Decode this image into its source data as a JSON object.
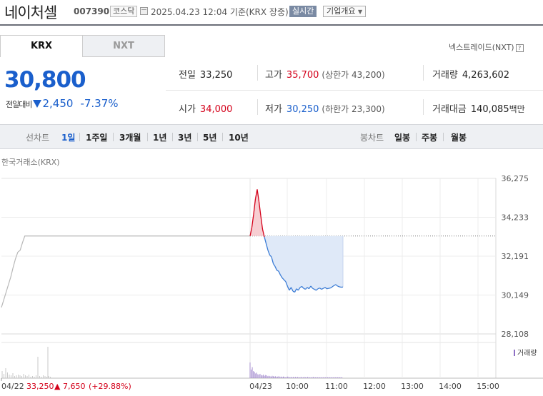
{
  "header": {
    "company_name": "네이처셀",
    "stock_code": "007390",
    "market_badge": "코스닥",
    "as_of": "2025.04.23 12:04  기준(KRX 장중)",
    "realtime_label": "실시간",
    "company_overview_label": "기업개요",
    "icons": {
      "calendar": "calendar-icon",
      "overview_dropdown": "chevron-down-icon"
    }
  },
  "market_tabs": [
    {
      "label": "KRX",
      "active": true
    },
    {
      "label": "NXT",
      "active": false
    }
  ],
  "nxt_link": {
    "label": "넥스트레이드(NXT)",
    "help": "?"
  },
  "quote": {
    "price": "30,800",
    "change_label": "전일대비",
    "change_value": "2,450",
    "change_pct": "-7.37%",
    "direction": "down"
  },
  "stats": {
    "prev_close": {
      "label": "전일",
      "value": "33,250"
    },
    "high": {
      "label": "고가",
      "value": "35,700",
      "sub": "(상한가 43,200)"
    },
    "volume": {
      "label": "거래량",
      "value": "4,263,602"
    },
    "open": {
      "label": "시가",
      "value": "34,000"
    },
    "low": {
      "label": "저가",
      "value": "30,250",
      "sub": "(하한가 23,300)"
    },
    "trade_value": {
      "label": "거래대금",
      "value": "140,085",
      "unit": "백만"
    }
  },
  "period_bar": {
    "line_chart_label": "선차트",
    "line_periods": [
      "1일",
      "1주일",
      "3개월",
      "1년",
      "3년",
      "5년",
      "10년"
    ],
    "active_period": "1일",
    "candle_chart_label": "봉차트",
    "candle_periods": [
      "일봉",
      "주봉",
      "월봉"
    ]
  },
  "chart_source": "한국거래소(KRX)",
  "colors": {
    "up": "#d4001a",
    "down": "#1a5fcc",
    "volume": "#8e6fc4"
  },
  "chart_data": {
    "type": "line",
    "y_ticks": [
      "36,275",
      "34,233",
      "32,191",
      "30,149",
      "28,108"
    ],
    "y_range": [
      28108,
      36275
    ],
    "x_ticks": [
      "04/22",
      "04/23",
      "10:00",
      "11:00",
      "12:00",
      "13:00",
      "14:00",
      "15:00"
    ],
    "reference_price": 33250,
    "legend": "거래량",
    "footer": {
      "date": "04/22",
      "close": "33,250",
      "change": "▲ 7,650",
      "change_pct": "(+29.88%)"
    },
    "prev_day_series": [
      29500,
      29900,
      30300,
      30700,
      31100,
      31600,
      32050,
      32400,
      32500,
      32900,
      33250,
      33250
    ],
    "today_series": [
      [
        0,
        33250
      ],
      [
        2,
        33700
      ],
      [
        4,
        34400
      ],
      [
        6,
        35200
      ],
      [
        8,
        35700
      ],
      [
        10,
        35050
      ],
      [
        12,
        34300
      ],
      [
        14,
        33600
      ],
      [
        16,
        33200
      ],
      [
        18,
        32850
      ],
      [
        20,
        32500
      ],
      [
        22,
        32250
      ],
      [
        24,
        32150
      ],
      [
        26,
        31800
      ],
      [
        28,
        31650
      ],
      [
        30,
        31450
      ],
      [
        32,
        31400
      ],
      [
        34,
        31200
      ],
      [
        36,
        31050
      ],
      [
        38,
        30950
      ],
      [
        40,
        30850
      ],
      [
        42,
        30600
      ],
      [
        44,
        30400
      ],
      [
        46,
        30550
      ],
      [
        48,
        30350
      ],
      [
        50,
        30300
      ],
      [
        52,
        30480
      ],
      [
        54,
        30400
      ],
      [
        56,
        30550
      ],
      [
        58,
        30600
      ],
      [
        60,
        30500
      ],
      [
        62,
        30450
      ],
      [
        64,
        30550
      ],
      [
        66,
        30480
      ],
      [
        68,
        30620
      ],
      [
        70,
        30500
      ],
      [
        72,
        30450
      ],
      [
        74,
        30400
      ],
      [
        76,
        30480
      ],
      [
        78,
        30520
      ],
      [
        80,
        30450
      ],
      [
        82,
        30500
      ],
      [
        84,
        30550
      ],
      [
        86,
        30480
      ],
      [
        88,
        30500
      ],
      [
        90,
        30520
      ],
      [
        92,
        30580
      ],
      [
        94,
        30650
      ],
      [
        96,
        30700
      ],
      [
        98,
        30620
      ],
      [
        100,
        30580
      ],
      [
        102,
        30560
      ],
      [
        104,
        30570
      ]
    ]
  }
}
